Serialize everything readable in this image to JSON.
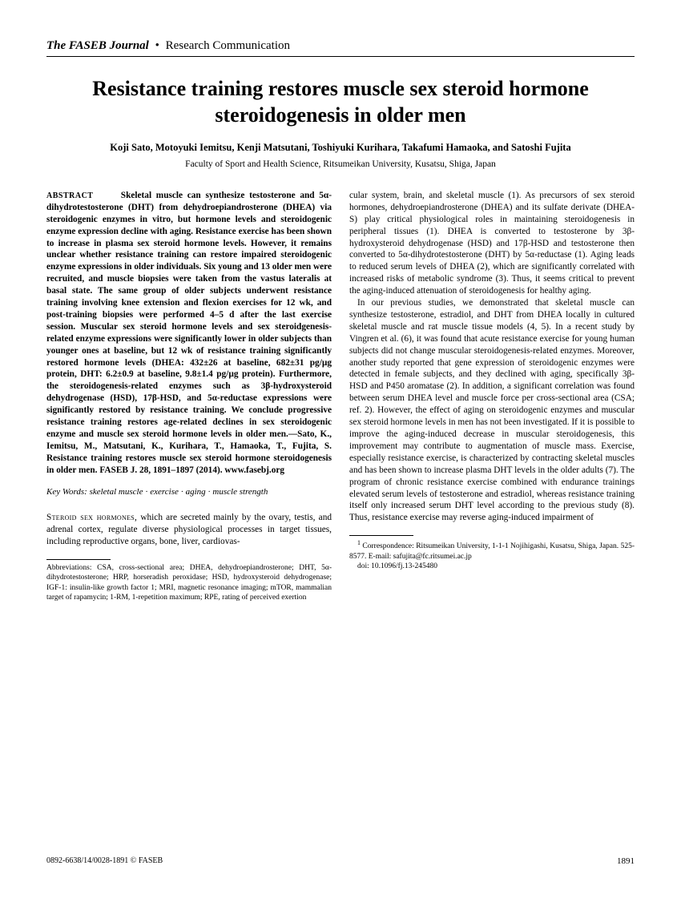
{
  "header": {
    "journal": "The FASEB Journal",
    "separator": "•",
    "section": "Research Communication"
  },
  "title": "Resistance training restores muscle sex steroid hormone steroidogenesis in older men",
  "authors": "Koji Sato, Motoyuki Iemitsu, Kenji Matsutani, Toshiyuki Kurihara, Takafumi Hamaoka, and Satoshi Fujita",
  "affiliation": "Faculty of Sport and Health Science, Ritsumeikan University, Kusatsu, Shiga, Japan",
  "abstract": {
    "label": "ABSTRACT",
    "body": "Skeletal muscle can synthesize testosterone and 5α-dihydrotestosterone (DHT) from dehydroepiandrosterone (DHEA) via steroidogenic enzymes in vitro, but hormone levels and steroidogenic enzyme expression decline with aging. Resistance exercise has been shown to increase in plasma sex steroid hormone levels. However, it remains unclear whether resistance training can restore impaired steroidogenic enzyme expressions in older individuals. Six young and 13 older men were recruited, and muscle biopsies were taken from the vastus lateralis at basal state. The same group of older subjects underwent resistance training involving knee extension and flexion exercises for 12 wk, and post-training biopsies were performed 4–5 d after the last exercise session. Muscular sex steroid hormone levels and sex steroidgenesis-related enzyme expressions were significantly lower in older subjects than younger ones at baseline, but 12 wk of resistance training significantly restored hormone levels (DHEA: 432±26 at baseline, 682±31 pg/µg protein, DHT: 6.2±0.9 at baseline, 9.8±1.4 pg/µg protein). Furthermore, the steroidogenesis-related enzymes such as 3β-hydroxysteroid dehydrogenase (HSD), 17β-HSD, and 5α-reductase expressions were significantly restored by resistance training. We conclude progressive resistance training restores age-related declines in sex steroidogenic enzyme and muscle sex steroid hormone levels in older men.—Sato, K., Iemitsu, M., Matsutani, K., Kurihara, T., Hamaoka, T., Fujita, S. Resistance training restores muscle sex steroid hormone steroidogenesis in older men. FASEB J. 28, 1891–1897 (2014). www.fasebj.org"
  },
  "keywords": {
    "label": "Key Words:",
    "items": [
      "skeletal muscle",
      "exercise",
      "aging",
      "muscle strength"
    ]
  },
  "intro": {
    "lead": "Steroid sex hormones,",
    "rest": " which are secreted mainly by the ovary, testis, and adrenal cortex, regulate diverse physiological processes in target tissues, including reproductive organs, bone, liver, cardiovas-"
  },
  "abbreviations": "Abbreviations: CSA, cross-sectional area; DHEA, dehydroepiandrosterone; DHT, 5α-dihydrotestosterone; HRP, horseradish peroxidase; HSD, hydroxysteroid dehydrogenase; IGF-1: insulin-like growth factor 1; MRI, magnetic resonance imaging; mTOR, mammalian target of rapamycin; 1-RM, 1-repetition maximum; RPE, rating of perceived exertion",
  "col2": {
    "p1": "cular system, brain, and skeletal muscle (1). As precursors of sex steroid hormones, dehydroepiandrosterone (DHEA) and its sulfate derivate (DHEA-S) play critical physiological roles in maintaining steroidogenesis in peripheral tissues (1). DHEA is converted to testosterone by 3β-hydroxysteroid dehydrogenase (HSD) and 17β-HSD and testosterone then converted to 5α-dihydrotestosterone (DHT) by 5α-reductase (1). Aging leads to reduced serum levels of DHEA (2), which are significantly correlated with increased risks of metabolic syndrome (3). Thus, it seems critical to prevent the aging-induced attenuation of steroidogenesis for healthy aging.",
    "p2": "In our previous studies, we demonstrated that skeletal muscle can synthesize testosterone, estradiol, and DHT from DHEA locally in cultured skeletal muscle and rat muscle tissue models (4, 5). In a recent study by Vingren et al. (6), it was found that acute resistance exercise for young human subjects did not change muscular steroidogenesis-related enzymes. Moreover, another study reported that gene expression of steroidogenic enzymes were detected in female subjects, and they declined with aging, specifically 3β-HSD and P450 aromatase (2). In addition, a significant correlation was found between serum DHEA level and muscle force per cross-sectional area (CSA; ref. 2). However, the effect of aging on steroidogenic enzymes and muscular sex steroid hormone levels in men has not been investigated. If it is possible to improve the aging-induced decrease in muscular steroidogenesis, this improvement may contribute to augmentation of muscle mass. Exercise, especially resistance exercise, is characterized by contracting skeletal muscles and has been shown to increase plasma DHT levels in the older adults (7). The program of chronic resistance exercise combined with endurance trainings elevated serum levels of testosterone and estradiol, whereas resistance training itself only increased serum DHT level according to the previous study (8). Thus, resistance exercise may reverse aging-induced impairment of"
  },
  "correspondence": {
    "sup": "1",
    "text": " Correspondence: Ritsumeikan University, 1-1-1 Nojihigashi, Kusatsu, Shiga, Japan. 525-8577. E-mail: safujita@fc.ritsumei.ac.jp",
    "doi": "doi: 10.1096/fj.13-245480"
  },
  "footer": {
    "left": "0892-6638/14/0028-1891 © FASEB",
    "page": "1891"
  }
}
